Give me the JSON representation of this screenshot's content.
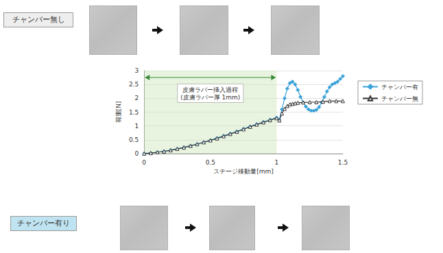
{
  "chart_data": {
    "type": "line",
    "x_label": "ステージ移動量[mm]",
    "y_label": "荷重[N]",
    "xlim": [
      0,
      1.5
    ],
    "xticks": [
      0,
      0.5,
      1,
      1.5
    ],
    "ylim": [
      0,
      3
    ],
    "yticks": [
      0,
      0.5,
      1,
      1.5,
      2,
      2.5,
      3
    ],
    "grid": true,
    "legend": "right",
    "annotation": {
      "lines": [
        "皮膚ラバー挿入過程",
        "(皮膚ラバー厚 1mm)"
      ],
      "x_range": [
        0,
        1
      ]
    },
    "image_labels": {
      "top": "チャンバー無し",
      "bottom": "チャンバー有り"
    },
    "series": [
      {
        "name": "チャンバー有",
        "color": "#3ba3d9",
        "marker": "diamond",
        "line_style": "solid",
        "x": [
          0,
          0.05,
          0.1,
          0.15,
          0.2,
          0.25,
          0.3,
          0.35,
          0.4,
          0.45,
          0.5,
          0.55,
          0.6,
          0.65,
          0.7,
          0.75,
          0.8,
          0.85,
          0.9,
          0.95,
          1.0,
          1.02,
          1.04,
          1.06,
          1.08,
          1.1,
          1.12,
          1.14,
          1.16,
          1.18,
          1.2,
          1.22,
          1.24,
          1.26,
          1.28,
          1.3,
          1.32,
          1.34,
          1.36,
          1.38,
          1.4,
          1.42,
          1.44,
          1.46,
          1.48,
          1.5
        ],
        "values": [
          0,
          0.02,
          0.05,
          0.08,
          0.12,
          0.17,
          0.22,
          0.28,
          0.34,
          0.41,
          0.48,
          0.56,
          0.64,
          0.72,
          0.8,
          0.89,
          0.98,
          1.06,
          1.14,
          1.22,
          1.3,
          1.22,
          1.6,
          2.0,
          2.35,
          2.55,
          2.6,
          2.5,
          2.3,
          2.05,
          1.85,
          1.7,
          1.6,
          1.55,
          1.55,
          1.58,
          1.68,
          1.85,
          2.05,
          2.25,
          2.4,
          2.5,
          2.55,
          2.6,
          2.7,
          2.8
        ]
      },
      {
        "name": "チャンバー無",
        "color": "#333333",
        "marker": "open-triangle",
        "line_style": "solid",
        "x": [
          0,
          0.05,
          0.1,
          0.15,
          0.2,
          0.25,
          0.3,
          0.35,
          0.4,
          0.45,
          0.5,
          0.55,
          0.6,
          0.65,
          0.7,
          0.75,
          0.8,
          0.85,
          0.9,
          0.95,
          1.0,
          1.02,
          1.04,
          1.06,
          1.08,
          1.1,
          1.12,
          1.14,
          1.16,
          1.2,
          1.25,
          1.3,
          1.35,
          1.4,
          1.45,
          1.5
        ],
        "values": [
          0,
          0.02,
          0.05,
          0.08,
          0.12,
          0.17,
          0.22,
          0.28,
          0.34,
          0.41,
          0.48,
          0.55,
          0.63,
          0.71,
          0.79,
          0.88,
          0.97,
          1.05,
          1.13,
          1.21,
          1.28,
          1.2,
          1.45,
          1.62,
          1.72,
          1.78,
          1.8,
          1.82,
          1.84,
          1.85,
          1.86,
          1.86,
          1.88,
          1.9,
          1.9,
          1.9
        ]
      }
    ]
  }
}
